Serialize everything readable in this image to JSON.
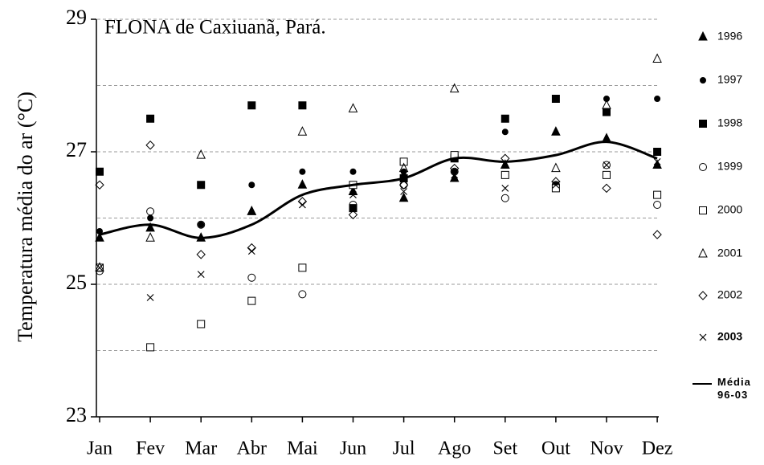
{
  "chart_data": {
    "type": "scatter",
    "title": "FLONA de Caxiuanã, Pará.",
    "y_label": "Temperatura média do ar  (°C)",
    "categories": [
      "Jan",
      "Fev",
      "Mar",
      "Abr",
      "Mai",
      "Jun",
      "Jul",
      "Ago",
      "Set",
      "Out",
      "Nov",
      "Dez"
    ],
    "ylim": [
      23,
      29
    ],
    "yticks": [
      23,
      25,
      27,
      29
    ],
    "ygrid": [
      24,
      25,
      26,
      27,
      28,
      29
    ],
    "grid": true,
    "legend": "right",
    "series": [
      {
        "name": "1996",
        "color": "#000000",
        "marker": "triangle-filled",
        "values": [
          25.7,
          25.85,
          25.7,
          26.1,
          26.5,
          26.4,
          26.3,
          26.6,
          26.8,
          27.3,
          27.2,
          26.8
        ]
      },
      {
        "name": "1997",
        "color": "#000000",
        "marker": "circle-filled",
        "values": [
          25.8,
          26.0,
          25.9,
          26.5,
          26.7,
          26.7,
          26.7,
          26.7,
          27.3,
          26.5,
          27.8,
          27.8
        ]
      },
      {
        "name": "1998",
        "color": "#000000",
        "marker": "square-filled",
        "values": [
          26.7,
          27.5,
          26.5,
          27.7,
          27.7,
          26.15,
          26.6,
          26.9,
          27.5,
          27.8,
          27.6,
          27.0
        ]
      },
      {
        "name": "1999",
        "color": "#000000",
        "marker": "circle-open",
        "values": [
          25.2,
          26.1,
          25.9,
          25.1,
          24.85,
          26.2,
          26.5,
          26.7,
          26.3,
          26.5,
          26.8,
          26.2
        ]
      },
      {
        "name": "2000",
        "color": "#000000",
        "marker": "square-open",
        "values": [
          25.25,
          24.05,
          24.4,
          24.75,
          25.25,
          26.5,
          26.85,
          26.95,
          26.65,
          26.45,
          26.65,
          26.35
        ]
      },
      {
        "name": "2001",
        "color": "#000000",
        "marker": "triangle-open",
        "values": [
          25.25,
          25.7,
          26.95,
          26.1,
          27.3,
          27.65,
          26.75,
          27.95,
          26.8,
          26.75,
          27.7,
          28.4
        ]
      },
      {
        "name": "2002",
        "color": "#000000",
        "marker": "diamond-open",
        "values": [
          26.5,
          27.1,
          25.45,
          25.55,
          26.25,
          26.05,
          26.5,
          26.75,
          26.9,
          26.55,
          26.45,
          25.75
        ]
      },
      {
        "name": "2003",
        "color": "#000000",
        "marker": "cross",
        "values": [
          25.25,
          24.8,
          25.15,
          25.5,
          26.2,
          26.35,
          26.4,
          26.65,
          26.45,
          26.5,
          26.8,
          26.85
        ]
      },
      {
        "name": "Média 96-03",
        "color": "#000000",
        "marker": "line",
        "values": [
          25.75,
          25.9,
          25.7,
          25.9,
          26.35,
          26.5,
          26.6,
          26.9,
          26.85,
          26.95,
          27.15,
          26.9
        ]
      }
    ]
  }
}
